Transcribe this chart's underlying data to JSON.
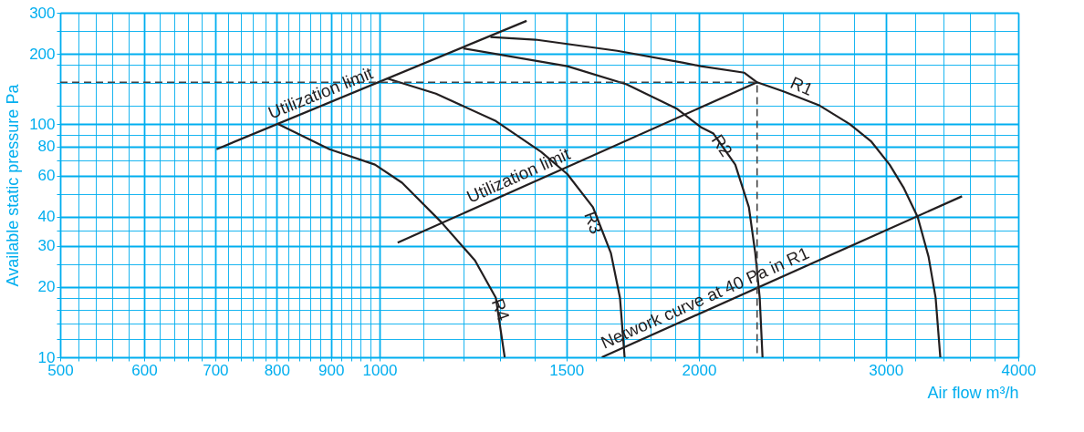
{
  "chart_data": {
    "type": "line",
    "xlabel": "Air flow m³/h",
    "ylabel": "Available static pressure Pa",
    "log": "xy",
    "grid": true,
    "legend": false,
    "xlim": [
      500,
      4000
    ],
    "ylim": [
      10,
      300
    ],
    "xticks": [
      500,
      {
        "value": 520,
        "label": null
      },
      {
        "value": 540,
        "label": null
      },
      {
        "value": 560,
        "label": null
      },
      {
        "value": 580,
        "label": null
      },
      600,
      {
        "value": 620,
        "label": null
      },
      {
        "value": 640,
        "label": null
      },
      {
        "value": 660,
        "label": null
      },
      {
        "value": 680,
        "label": null
      },
      700,
      {
        "value": 720,
        "label": null
      },
      {
        "value": 740,
        "label": null
      },
      {
        "value": 760,
        "label": null
      },
      {
        "value": 780,
        "label": null
      },
      800,
      {
        "value": 820,
        "label": null
      },
      {
        "value": 840,
        "label": null
      },
      {
        "value": 860,
        "label": null
      },
      {
        "value": 880,
        "label": null
      },
      900,
      {
        "value": 920,
        "label": null
      },
      {
        "value": 940,
        "label": null
      },
      {
        "value": 960,
        "label": null
      },
      {
        "value": 980,
        "label": null
      },
      1000,
      {
        "value": 1100,
        "label": null
      },
      {
        "value": 1200,
        "label": null
      },
      {
        "value": 1300,
        "label": null
      },
      {
        "value": 1400,
        "label": null
      },
      1500,
      {
        "value": 1600,
        "label": null
      },
      {
        "value": 1700,
        "label": null
      },
      {
        "value": 1800,
        "label": null
      },
      {
        "value": 1900,
        "label": null
      },
      2000,
      {
        "value": 2200,
        "label": null
      },
      {
        "value": 2400,
        "label": null
      },
      {
        "value": 2600,
        "label": null
      },
      {
        "value": 2800,
        "label": null
      },
      3000,
      {
        "value": 3200,
        "label": null
      },
      {
        "value": 3400,
        "label": null
      },
      {
        "value": 3600,
        "label": null
      },
      {
        "value": 3800,
        "label": null
      },
      4000
    ],
    "yticks": [
      10,
      {
        "value": 12,
        "label": null
      },
      {
        "value": 14,
        "label": null
      },
      {
        "value": 16,
        "label": null
      },
      {
        "value": 18,
        "label": null
      },
      20,
      {
        "value": 25,
        "label": null
      },
      30,
      {
        "value": 35,
        "label": null
      },
      40,
      {
        "value": 50,
        "label": null
      },
      60,
      {
        "value": 70,
        "label": null
      },
      80,
      {
        "value": 90,
        "label": null
      },
      100,
      {
        "value": 120,
        "label": null
      },
      {
        "value": 150,
        "label": null
      },
      {
        "value": 180,
        "label": null
      },
      200,
      {
        "value": 250,
        "label": null
      },
      300
    ],
    "series": [
      {
        "name": "R1",
        "color": "#231f20",
        "x": [
          1272,
          1403,
          1675,
          1934,
          2008,
          2207,
          2269,
          2402,
          2599,
          2774,
          2908,
          3025,
          3121,
          3215,
          3292,
          3343,
          3377
        ],
        "values": [
          236,
          230,
          206,
          183,
          177,
          166,
          151,
          138,
          120,
          100,
          84,
          67,
          53,
          40,
          27,
          18,
          10
        ]
      },
      {
        "name": "R2",
        "color": "#231f20",
        "x": [
          1199,
          1503,
          1709,
          1908,
          2008,
          2064,
          2164,
          2229,
          2260,
          2282,
          2296
        ],
        "values": [
          211,
          177,
          148,
          116,
          97,
          91,
          67,
          44,
          28,
          18,
          10
        ]
      },
      {
        "name": "R3",
        "color": "#231f20",
        "x": [
          1016,
          1130,
          1287,
          1420,
          1503,
          1589,
          1652,
          1685,
          1702
        ],
        "values": [
          157,
          135,
          103,
          76,
          61,
          44,
          28,
          18,
          10
        ]
      },
      {
        "name": "R4",
        "color": "#231f20",
        "x": [
          802,
          897,
          990,
          1050,
          1143,
          1230,
          1287,
          1312
        ],
        "values": [
          100,
          78,
          67,
          56,
          38,
          26,
          18,
          10
        ]
      },
      {
        "name": "Utilization limit",
        "color": "#231f20",
        "x": [
          702,
          1376
        ],
        "values": [
          78,
          277
        ]
      },
      {
        "name": "Utilization limit",
        "color": "#231f20",
        "x": [
          1040,
          2269
        ],
        "values": [
          31,
          151
        ]
      },
      {
        "name": "Network curve at 40 Pa in R1",
        "color": "#231f20",
        "x": [
          1620,
          3540
        ],
        "values": [
          10,
          49
        ]
      },
      {
        "color": "#444444",
        "line_style": "dashed",
        "x": [
          500,
          2269,
          2269
        ],
        "values": [
          151,
          151,
          10
        ]
      }
    ]
  }
}
